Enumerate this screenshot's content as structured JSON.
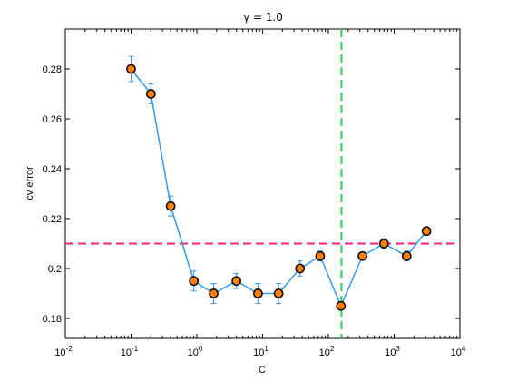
{
  "chart_data": {
    "type": "line",
    "title": "γ = 1.0",
    "xlabel": "C",
    "ylabel": "cv  error",
    "xscale": "log",
    "xlim": [
      0.01,
      10000
    ],
    "ylim": [
      0.172,
      0.296
    ],
    "x_ticks": [
      {
        "base": "10",
        "exp": "-2",
        "value": 0.01
      },
      {
        "base": "10",
        "exp": "-1",
        "value": 0.1
      },
      {
        "base": "10",
        "exp": "0",
        "value": 1
      },
      {
        "base": "10",
        "exp": "1",
        "value": 10
      },
      {
        "base": "10",
        "exp": "2",
        "value": 100
      },
      {
        "base": "10",
        "exp": "3",
        "value": 1000
      },
      {
        "base": "10",
        "exp": "4",
        "value": 10000
      }
    ],
    "y_ticks": [
      "0.18",
      "0.2",
      "0.22",
      "0.24",
      "0.26",
      "0.28"
    ],
    "grid": false,
    "series": [
      {
        "x": [
          0.1,
          0.2,
          0.4,
          0.9,
          1.8,
          4,
          8.5,
          17.5,
          37,
          75,
          155,
          330,
          700,
          1550,
          3100
        ],
        "y": [
          0.28,
          0.27,
          0.225,
          0.195,
          0.19,
          0.195,
          0.19,
          0.19,
          0.2,
          0.205,
          0.185,
          0.205,
          0.21,
          0.205,
          0.215
        ],
        "err": [
          0.005,
          0.004,
          0.004,
          0.004,
          0.004,
          0.003,
          0.004,
          0.004,
          0.003,
          0.002,
          0,
          0.001,
          0.002,
          0.002,
          0.001
        ],
        "color": "#3399ee",
        "marker_face": "#ff8000",
        "marker_edge": "#000000"
      }
    ],
    "hline": {
      "y": 0.21,
      "color": "#ee2277",
      "style": "dashed"
    },
    "vline": {
      "x": 158,
      "color": "#33cc55",
      "style": "dashed"
    }
  }
}
